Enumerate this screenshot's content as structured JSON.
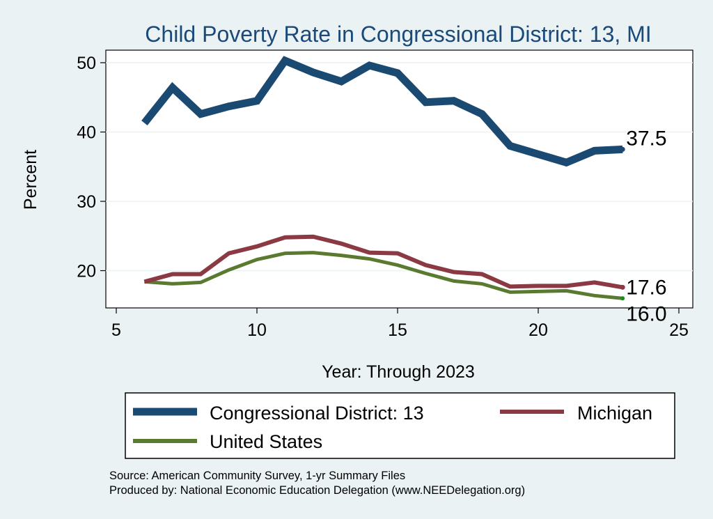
{
  "chart_data": {
    "type": "line",
    "title": "Child Poverty Rate in Congressional District:  13, MI",
    "xlabel": "Year: Through 2023",
    "ylabel": "Percent",
    "xlim": [
      5,
      25
    ],
    "ylim": [
      14.5,
      52
    ],
    "xticks": [
      5,
      10,
      15,
      20,
      25
    ],
    "yticks": [
      20,
      30,
      40,
      50
    ],
    "grid": true,
    "legend_position": "bottom",
    "series": [
      {
        "name": "Congressional District:  13",
        "color": "#1a4a72",
        "x": [
          6,
          7,
          8,
          9,
          10,
          11,
          12,
          13,
          14,
          15,
          16,
          17,
          18,
          19,
          20,
          21,
          22,
          23
        ],
        "values": [
          41.3,
          46.4,
          42.6,
          43.7,
          44.5,
          50.3,
          48.6,
          47.3,
          49.6,
          48.5,
          44.3,
          44.5,
          42.6,
          38.0,
          36.8,
          35.6,
          37.3,
          37.5
        ],
        "end_label": "37.5"
      },
      {
        "name": "Michigan",
        "color": "#8b3a44",
        "x": [
          6,
          7,
          8,
          9,
          10,
          11,
          12,
          13,
          14,
          15,
          16,
          17,
          18,
          19,
          20,
          21,
          22,
          23
        ],
        "values": [
          18.4,
          19.5,
          19.5,
          22.5,
          23.5,
          24.8,
          24.9,
          23.9,
          22.6,
          22.5,
          20.8,
          19.8,
          19.5,
          17.7,
          17.8,
          17.8,
          18.3,
          17.6
        ],
        "end_label": "17.6"
      },
      {
        "name": "United States",
        "color": "#5a7a30",
        "x": [
          6,
          7,
          8,
          9,
          10,
          11,
          12,
          13,
          14,
          15,
          16,
          17,
          18,
          19,
          20,
          21,
          22,
          23
        ],
        "values": [
          18.4,
          18.1,
          18.3,
          20.1,
          21.6,
          22.5,
          22.6,
          22.2,
          21.7,
          20.8,
          19.6,
          18.5,
          18.1,
          16.9,
          17.0,
          17.1,
          16.4,
          16.0
        ],
        "end_label": "16.0"
      }
    ]
  },
  "notes": {
    "source": "Source: American Community Survey, 1-yr Summary Files",
    "produced_by": "Produced by: National Economic Education Delegation (www.NEEDelegation.org)"
  }
}
